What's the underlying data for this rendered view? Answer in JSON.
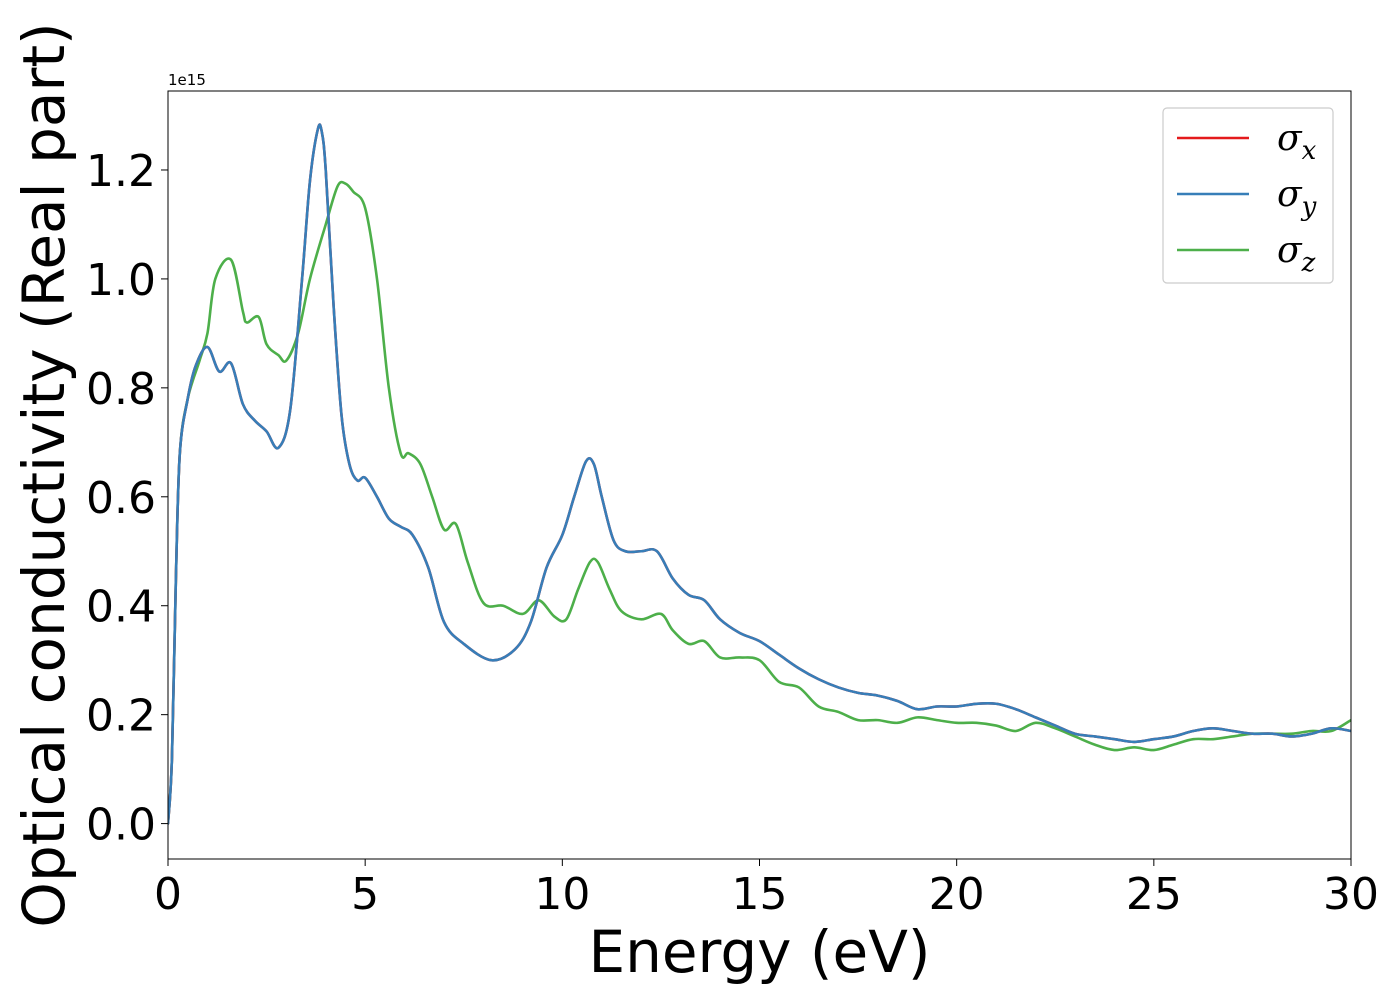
{
  "chart_data": {
    "type": "line",
    "xlabel": "Energy (eV)",
    "ylabel": "Optical conductivity (Real part)",
    "y_offset_label": "1e15",
    "xlim": [
      0,
      30
    ],
    "ylim": [
      -0.065,
      1.345
    ],
    "xticks": [
      0,
      5,
      10,
      15,
      20,
      25,
      30
    ],
    "xtick_labels": [
      "0",
      "5",
      "10",
      "15",
      "20",
      "25",
      "30"
    ],
    "yticks": [
      0.0,
      0.2,
      0.4,
      0.6,
      0.8,
      1.0,
      1.2
    ],
    "ytick_labels": [
      "0.0",
      "0.2",
      "0.4",
      "0.6",
      "0.8",
      "1.0",
      "1.2"
    ],
    "grid": false,
    "legend_position": "top-right",
    "series": [
      {
        "name": "σx",
        "symbol": "σ",
        "subscript": "x",
        "color": "#e41a1c",
        "x": [
          0,
          0.1,
          0.2,
          0.3,
          0.5,
          0.7,
          1.0,
          1.3,
          1.6,
          1.9,
          2.2,
          2.5,
          2.8,
          3.1,
          3.4,
          3.6,
          3.8,
          3.9,
          4.0,
          4.2,
          4.4,
          4.6,
          4.8,
          5.0,
          5.3,
          5.6,
          5.9,
          6.2,
          6.6,
          7.0,
          7.5,
          8.2,
          8.8,
          9.2,
          9.6,
          10.0,
          10.3,
          10.6,
          10.8,
          11.0,
          11.3,
          11.6,
          12.0,
          12.4,
          12.8,
          13.2,
          13.6,
          14.0,
          14.5,
          15.0,
          15.5,
          16.0,
          16.5,
          17.0,
          17.5,
          18.0,
          18.5,
          19.0,
          19.5,
          20.0,
          20.5,
          21.0,
          21.5,
          22.0,
          22.5,
          23.0,
          23.5,
          24.0,
          24.5,
          25.0,
          25.5,
          26.0,
          26.5,
          27.0,
          27.5,
          28.0,
          28.5,
          29.0,
          29.5,
          30.0
        ],
        "y": [
          0.0,
          0.12,
          0.45,
          0.68,
          0.78,
          0.84,
          0.875,
          0.83,
          0.845,
          0.77,
          0.74,
          0.72,
          0.69,
          0.76,
          1.0,
          1.18,
          1.275,
          1.27,
          1.2,
          0.95,
          0.75,
          0.66,
          0.63,
          0.635,
          0.6,
          0.56,
          0.545,
          0.53,
          0.47,
          0.37,
          0.33,
          0.3,
          0.32,
          0.37,
          0.47,
          0.53,
          0.6,
          0.665,
          0.66,
          0.6,
          0.52,
          0.5,
          0.5,
          0.5,
          0.45,
          0.42,
          0.41,
          0.375,
          0.35,
          0.335,
          0.31,
          0.285,
          0.265,
          0.25,
          0.24,
          0.235,
          0.225,
          0.21,
          0.215,
          0.215,
          0.22,
          0.22,
          0.21,
          0.195,
          0.18,
          0.165,
          0.16,
          0.155,
          0.15,
          0.155,
          0.16,
          0.17,
          0.175,
          0.17,
          0.165,
          0.165,
          0.16,
          0.165,
          0.175,
          0.17
        ]
      },
      {
        "name": "σy",
        "symbol": "σ",
        "subscript": "y",
        "color": "#377eb8",
        "x": [
          0,
          0.1,
          0.2,
          0.3,
          0.5,
          0.7,
          1.0,
          1.3,
          1.6,
          1.9,
          2.2,
          2.5,
          2.8,
          3.1,
          3.4,
          3.6,
          3.8,
          3.9,
          4.0,
          4.2,
          4.4,
          4.6,
          4.8,
          5.0,
          5.3,
          5.6,
          5.9,
          6.2,
          6.6,
          7.0,
          7.5,
          8.2,
          8.8,
          9.2,
          9.6,
          10.0,
          10.3,
          10.6,
          10.8,
          11.0,
          11.3,
          11.6,
          12.0,
          12.4,
          12.8,
          13.2,
          13.6,
          14.0,
          14.5,
          15.0,
          15.5,
          16.0,
          16.5,
          17.0,
          17.5,
          18.0,
          18.5,
          19.0,
          19.5,
          20.0,
          20.5,
          21.0,
          21.5,
          22.0,
          22.5,
          23.0,
          23.5,
          24.0,
          24.5,
          25.0,
          25.5,
          26.0,
          26.5,
          27.0,
          27.5,
          28.0,
          28.5,
          29.0,
          29.5,
          30.0
        ],
        "y": [
          0.0,
          0.12,
          0.45,
          0.68,
          0.78,
          0.84,
          0.875,
          0.83,
          0.845,
          0.77,
          0.74,
          0.72,
          0.69,
          0.76,
          1.0,
          1.18,
          1.275,
          1.27,
          1.2,
          0.95,
          0.75,
          0.66,
          0.63,
          0.635,
          0.6,
          0.56,
          0.545,
          0.53,
          0.47,
          0.37,
          0.33,
          0.3,
          0.32,
          0.37,
          0.47,
          0.53,
          0.6,
          0.665,
          0.66,
          0.6,
          0.52,
          0.5,
          0.5,
          0.5,
          0.45,
          0.42,
          0.41,
          0.375,
          0.35,
          0.335,
          0.31,
          0.285,
          0.265,
          0.25,
          0.24,
          0.235,
          0.225,
          0.21,
          0.215,
          0.215,
          0.22,
          0.22,
          0.21,
          0.195,
          0.18,
          0.165,
          0.16,
          0.155,
          0.15,
          0.155,
          0.16,
          0.17,
          0.175,
          0.17,
          0.165,
          0.165,
          0.16,
          0.165,
          0.175,
          0.17
        ]
      },
      {
        "name": "σz",
        "symbol": "σ",
        "subscript": "z",
        "color": "#4daf4a",
        "x": [
          0,
          0.1,
          0.2,
          0.3,
          0.5,
          0.8,
          1.0,
          1.2,
          1.6,
          1.9,
          2.0,
          2.3,
          2.5,
          2.8,
          3.0,
          3.3,
          3.6,
          4.0,
          4.3,
          4.5,
          4.7,
          5.0,
          5.3,
          5.6,
          5.9,
          6.1,
          6.4,
          6.7,
          7.0,
          7.3,
          7.6,
          8.0,
          8.5,
          9.0,
          9.4,
          9.8,
          10.1,
          10.4,
          10.7,
          10.9,
          11.2,
          11.5,
          12.0,
          12.5,
          12.8,
          13.2,
          13.6,
          14.0,
          14.5,
          15.0,
          15.5,
          16.0,
          16.5,
          17.0,
          17.5,
          18.0,
          18.5,
          19.0,
          19.5,
          20.0,
          20.5,
          21.0,
          21.5,
          22.0,
          22.5,
          23.0,
          23.5,
          24.0,
          24.5,
          25.0,
          25.5,
          26.0,
          26.5,
          27.0,
          27.5,
          28.0,
          28.5,
          29.0,
          29.5,
          30.0
        ],
        "y": [
          0.0,
          0.12,
          0.45,
          0.68,
          0.78,
          0.85,
          0.9,
          1.0,
          1.035,
          0.94,
          0.92,
          0.93,
          0.88,
          0.86,
          0.85,
          0.9,
          1.0,
          1.1,
          1.17,
          1.175,
          1.16,
          1.13,
          1.0,
          0.8,
          0.68,
          0.68,
          0.66,
          0.6,
          0.54,
          0.55,
          0.48,
          0.405,
          0.4,
          0.385,
          0.41,
          0.38,
          0.375,
          0.43,
          0.48,
          0.48,
          0.43,
          0.39,
          0.375,
          0.385,
          0.355,
          0.33,
          0.335,
          0.305,
          0.305,
          0.3,
          0.26,
          0.25,
          0.215,
          0.205,
          0.19,
          0.19,
          0.185,
          0.195,
          0.19,
          0.185,
          0.185,
          0.18,
          0.17,
          0.185,
          0.175,
          0.16,
          0.145,
          0.135,
          0.14,
          0.135,
          0.145,
          0.155,
          0.155,
          0.16,
          0.165,
          0.165,
          0.165,
          0.17,
          0.17,
          0.19
        ]
      }
    ]
  }
}
